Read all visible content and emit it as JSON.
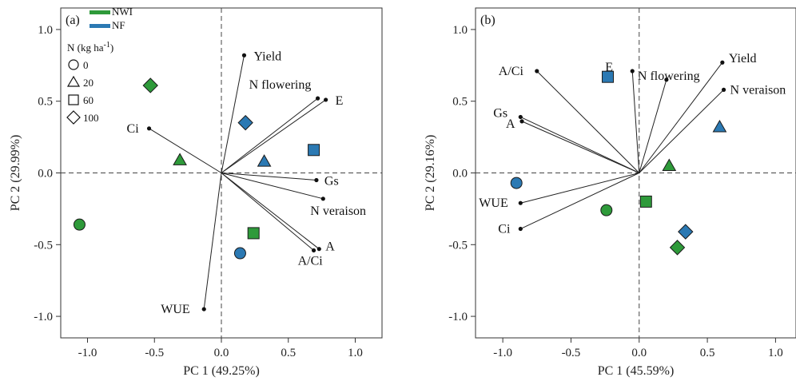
{
  "colors": {
    "NWI": "#2e9a3a",
    "NF": "#2b79b3",
    "axis": "#333333",
    "vector": "#222222"
  },
  "legend": {
    "series": [
      {
        "name": "NWI",
        "color": "#2e9a3a"
      },
      {
        "name": "NF",
        "color": "#2b79b3"
      }
    ],
    "n_title": "N (kg ha",
    "n_title_sup": "-1",
    "n_title_end": ")",
    "levels": [
      {
        "label": "0",
        "shape": "circle"
      },
      {
        "label": "20",
        "shape": "triangle"
      },
      {
        "label": "60",
        "shape": "square"
      },
      {
        "label": "100",
        "shape": "diamond"
      }
    ]
  },
  "chart_data": [
    {
      "type": "scatter",
      "panel_label": "(a)",
      "xlabel": "PC 1 (49.25%)",
      "ylabel": "PC 2 (29.99%)",
      "xlim": [
        -1.2,
        1.2
      ],
      "ylim": [
        -1.15,
        1.15
      ],
      "xticks": [
        -1.0,
        -0.5,
        0.0,
        0.5,
        1.0
      ],
      "xtick_labels": [
        "-1.0",
        "-0.5",
        "0.0",
        "0.5",
        "1.0"
      ],
      "yticks": [
        -1.0,
        -0.5,
        0.0,
        0.5,
        1.0
      ],
      "ytick_labels": [
        "-1.0",
        "-0.5",
        "0.0",
        "0.5",
        "1.0"
      ],
      "loadings": [
        {
          "name": "Yield",
          "x": 0.17,
          "y": 0.82
        },
        {
          "name": "N flowering",
          "x": 0.72,
          "y": 0.52
        },
        {
          "name": "E",
          "x": 0.78,
          "y": 0.51
        },
        {
          "name": "Ci",
          "x": -0.54,
          "y": 0.31
        },
        {
          "name": "Gs",
          "x": 0.71,
          "y": -0.05
        },
        {
          "name": "N veraison",
          "x": 0.76,
          "y": -0.18
        },
        {
          "name": "A",
          "x": 0.73,
          "y": -0.53
        },
        {
          "name": "A/Ci",
          "x": 0.69,
          "y": -0.54
        },
        {
          "name": "WUE",
          "x": -0.13,
          "y": -0.95
        }
      ],
      "points": [
        {
          "series": "NWI",
          "shape": "circle",
          "x": -1.06,
          "y": -0.36
        },
        {
          "series": "NWI",
          "shape": "triangle",
          "x": -0.31,
          "y": 0.09
        },
        {
          "series": "NWI",
          "shape": "square",
          "x": 0.24,
          "y": -0.42
        },
        {
          "series": "NWI",
          "shape": "diamond",
          "x": -0.53,
          "y": 0.61
        },
        {
          "series": "NF",
          "shape": "circle",
          "x": 0.14,
          "y": -0.56
        },
        {
          "series": "NF",
          "shape": "triangle",
          "x": 0.32,
          "y": 0.08
        },
        {
          "series": "NF",
          "shape": "square",
          "x": 0.69,
          "y": 0.16
        },
        {
          "series": "NF",
          "shape": "diamond",
          "x": 0.18,
          "y": 0.35
        }
      ]
    },
    {
      "type": "scatter",
      "panel_label": "(b)",
      "xlabel": "PC 1 (45.59%)",
      "ylabel": "PC 2 (29.16%)",
      "xlim": [
        -1.2,
        1.15
      ],
      "ylim": [
        -1.15,
        1.15
      ],
      "xticks": [
        -1.0,
        -0.5,
        0.0,
        0.5,
        1.0
      ],
      "xtick_labels": [
        "-1.0",
        "-0.5",
        "0.0",
        "0.5",
        "1.0"
      ],
      "yticks": [
        -1.0,
        -0.5,
        0.0,
        0.5,
        1.0
      ],
      "ytick_labels": [
        "-1.0",
        "-0.5",
        "0.0",
        "0.5",
        "1.0"
      ],
      "loadings": [
        {
          "name": "A/Ci",
          "x": -0.75,
          "y": 0.71
        },
        {
          "name": "Gs",
          "x": -0.87,
          "y": 0.39
        },
        {
          "name": "A",
          "x": -0.86,
          "y": 0.36
        },
        {
          "name": "WUE",
          "x": -0.87,
          "y": -0.21
        },
        {
          "name": "Ci",
          "x": -0.87,
          "y": -0.39
        },
        {
          "name": "E",
          "x": -0.05,
          "y": 0.71
        },
        {
          "name": "N flowering",
          "x": 0.2,
          "y": 0.65
        },
        {
          "name": "Yield",
          "x": 0.61,
          "y": 0.77
        },
        {
          "name": "N veraison",
          "x": 0.62,
          "y": 0.58
        }
      ],
      "points": [
        {
          "series": "NF",
          "shape": "circle",
          "x": -0.9,
          "y": -0.07
        },
        {
          "series": "NWI",
          "shape": "circle",
          "x": -0.24,
          "y": -0.26
        },
        {
          "series": "NF",
          "shape": "square",
          "x": -0.23,
          "y": 0.67
        },
        {
          "series": "NWI",
          "shape": "square",
          "x": 0.05,
          "y": -0.2
        },
        {
          "series": "NWI",
          "shape": "triangle",
          "x": 0.22,
          "y": 0.05
        },
        {
          "series": "NF",
          "shape": "triangle",
          "x": 0.59,
          "y": 0.32
        },
        {
          "series": "NF",
          "shape": "diamond",
          "x": 0.34,
          "y": -0.41
        },
        {
          "series": "NWI",
          "shape": "diamond",
          "x": 0.28,
          "y": -0.52
        }
      ]
    }
  ]
}
